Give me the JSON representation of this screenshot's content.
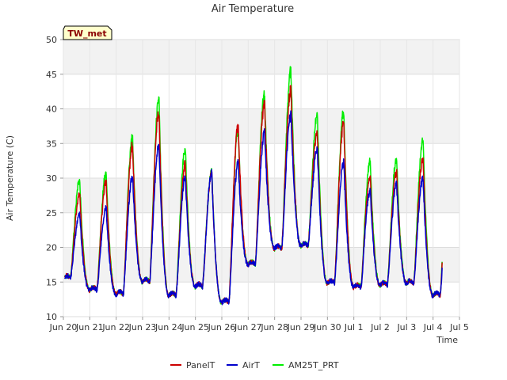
{
  "chart_data": {
    "type": "line",
    "title": "Air Temperature",
    "xlabel": "Time",
    "ylabel": "Air Temperature (C)",
    "badge": "TW_met",
    "x_ticks": [
      "Jun 20",
      "Jun 21",
      "Jun 22",
      "Jun 23",
      "Jun 24",
      "Jun 25",
      "Jun 26",
      "Jun 27",
      "Jun 28",
      "Jun 29",
      "Jun 30",
      "Jul 1",
      "Jul 2",
      "Jul 3",
      "Jul 4",
      "Jul 5"
    ],
    "xlim": [
      0,
      15
    ],
    "ylim": [
      10,
      50
    ],
    "y_ticks": [
      10,
      15,
      20,
      25,
      30,
      35,
      40,
      45,
      50
    ],
    "grid": true,
    "legend_position": "bottom",
    "day_start": "Jun 20",
    "day_minima": [
      15.5,
      13.8,
      13.2,
      15.0,
      13.0,
      14.3,
      12.0,
      17.5,
      19.8,
      20.2,
      14.8,
      14.2,
      14.5,
      14.8,
      13.0,
      14.5
    ],
    "day_maxima": [
      [
        27.8,
        29.5,
        34.8,
        39.6,
        32.2,
        30.6,
        37.6,
        40.8,
        42.8,
        36.6,
        38.0,
        30.2,
        31.0,
        33.0
      ],
      [
        24.6,
        25.6,
        30.2,
        34.6,
        30.0,
        30.6,
        32.0,
        36.3,
        38.9,
        34.0,
        32.1,
        28.1,
        29.0,
        29.9
      ],
      [
        29.9,
        31.0,
        36.1,
        41.7,
        34.6,
        31.1,
        37.3,
        42.5,
        45.9,
        39.3,
        40.1,
        32.6,
        33.1,
        36.0
      ]
    ],
    "series": [
      {
        "name": "PanelT",
        "color": "#cc0000"
      },
      {
        "name": "AirT",
        "color": "#0000cc"
      },
      {
        "name": "AM25T_PRT",
        "color": "#00ee00"
      }
    ],
    "end_x": 14.35
  }
}
